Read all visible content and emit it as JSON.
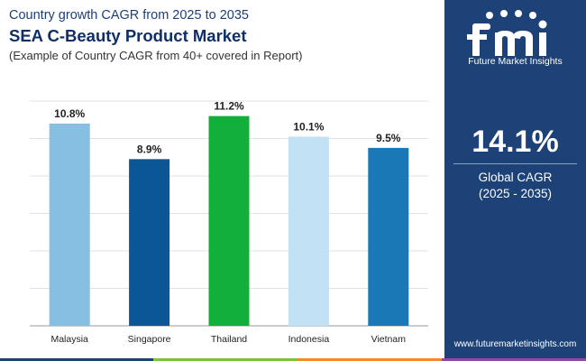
{
  "header": {
    "subtitle_top": "Country growth CAGR from 2025 to 2035",
    "title": "SEA C-Beauty Product Market",
    "subtitle": "(Example of Country CAGR from 40+ covered in Report)"
  },
  "chart_data": {
    "type": "bar",
    "categories": [
      "Malaysia",
      "Singapore",
      "Thailand",
      "Indonesia",
      "Vietnam"
    ],
    "values": [
      10.8,
      8.9,
      11.2,
      10.1,
      9.5
    ],
    "data_labels": [
      "10.8%",
      "8.9%",
      "11.2%",
      "10.1%",
      "9.5%"
    ],
    "colors": [
      "#87bfe3",
      "#0b5696",
      "#12b03a",
      "#c3e1f4",
      "#1a78b6"
    ],
    "ylim": [
      0,
      12
    ],
    "grid": true,
    "title": "",
    "xlabel": "",
    "ylabel": ""
  },
  "side_panel": {
    "logo_text": "Future Market Insights",
    "value": "14.1%",
    "label_line1": "Global CAGR",
    "label_line2": "(2025 - 2035)",
    "url": "www.futuremarketinsights.com",
    "background": "#1c4277"
  },
  "accent_strip_colors": [
    "#1c4277",
    "#7ec242",
    "#f28c28",
    "#8b4aa4"
  ]
}
